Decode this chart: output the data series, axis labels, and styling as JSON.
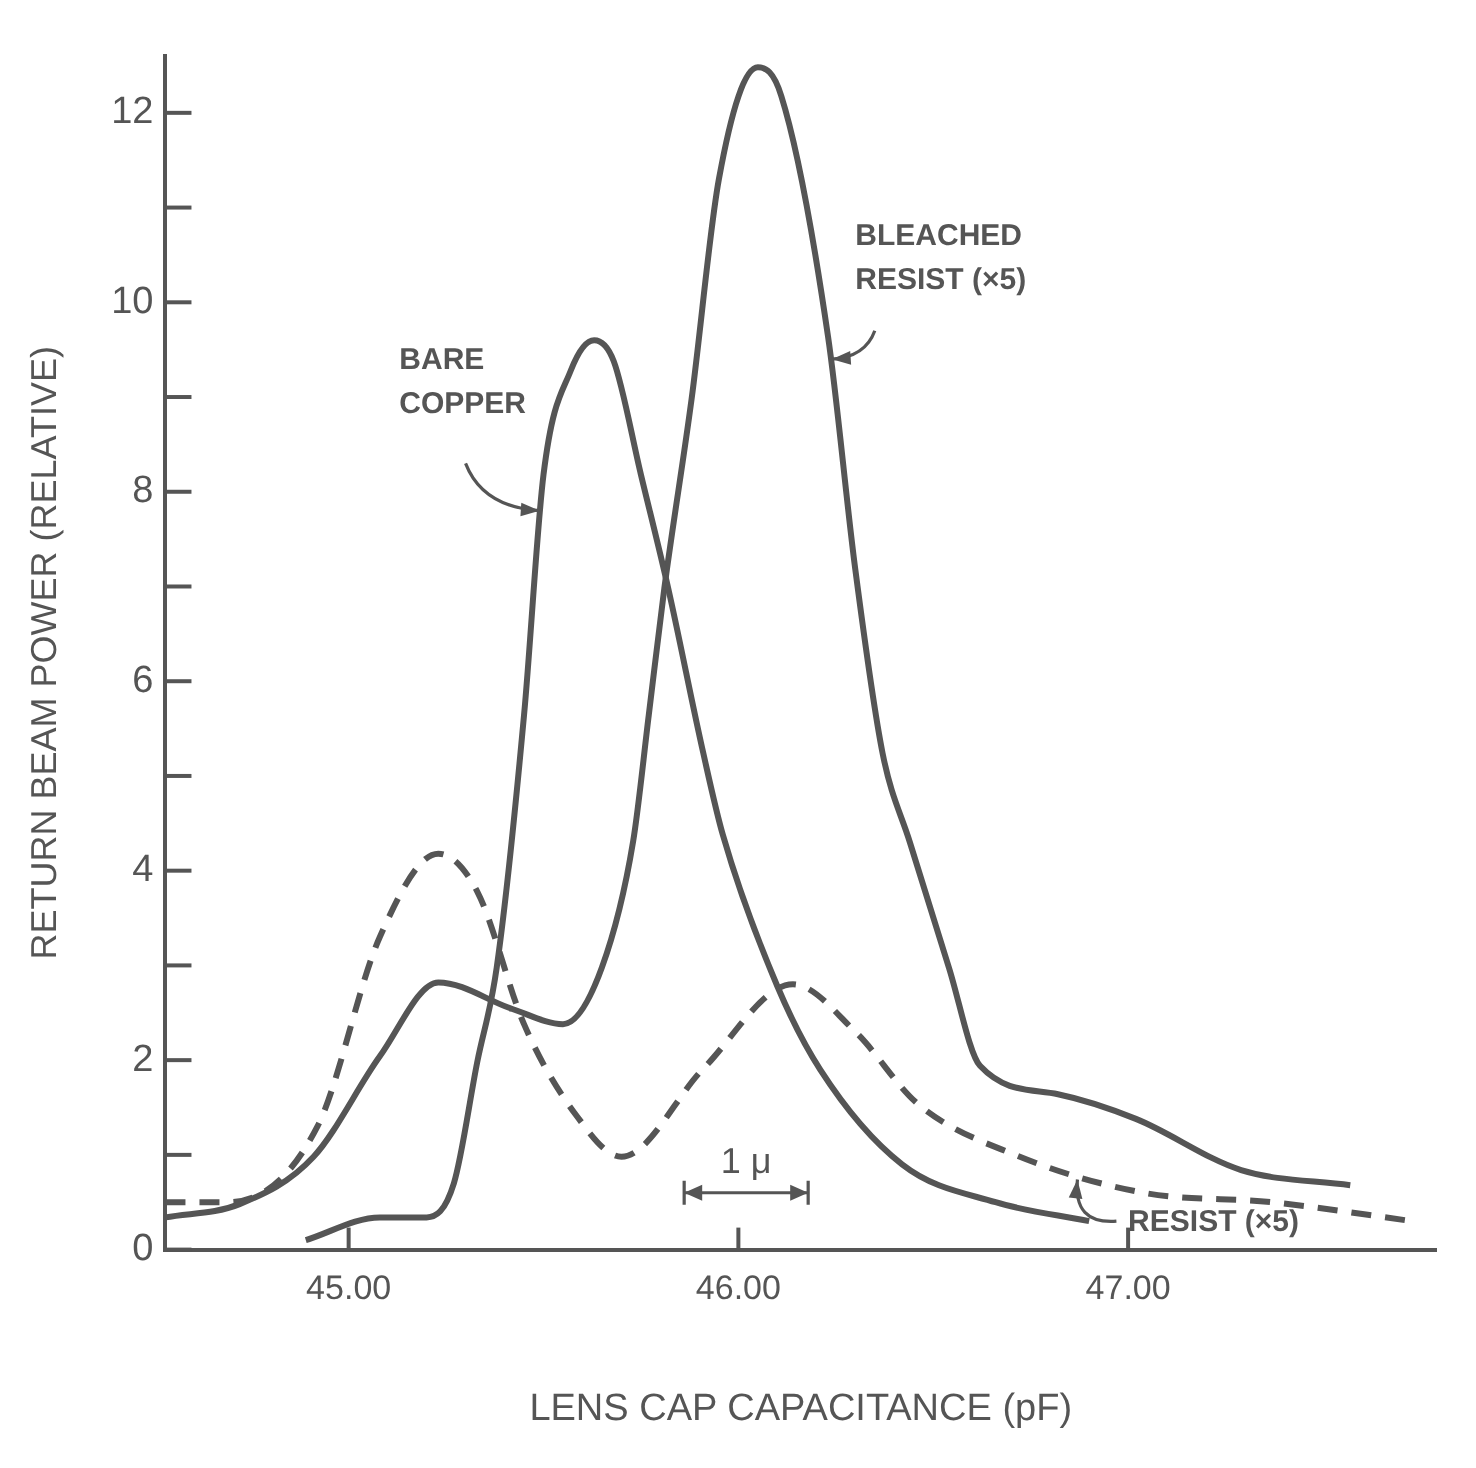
{
  "chart_data": {
    "type": "line",
    "xlabel": "LENS CAP CAPACITANCE (pF)",
    "ylabel": "RETURN BEAM POWER (RELATIVE)",
    "xlim": [
      44.53,
      47.79
    ],
    "ylim": [
      0,
      12.6
    ],
    "xticks": [
      {
        "value": 45,
        "label": "45.00"
      },
      {
        "value": 46,
        "label": "46.00"
      },
      {
        "value": 47,
        "label": "47.00"
      }
    ],
    "yticks": [
      0,
      {
        "value": 1,
        "label": null
      },
      2,
      {
        "value": 3,
        "label": null
      },
      4,
      {
        "value": 5,
        "label": null
      },
      6,
      {
        "value": 7,
        "label": null
      },
      8,
      {
        "value": 9,
        "label": null
      },
      10,
      {
        "value": 11,
        "label": null
      },
      12
    ],
    "grid": false,
    "legend": false,
    "marker": "none",
    "annotations": [
      "1 μ"
    ],
    "series": [
      {
        "name": "BARE COPPER",
        "color": "#555555",
        "line_style": "solid",
        "x": [
          44.89,
          45.08,
          45.2,
          45.27,
          45.33,
          45.38,
          45.45,
          45.5,
          45.57,
          45.63,
          45.68,
          45.75,
          45.82,
          45.91,
          45.96,
          46.1,
          46.21,
          46.42,
          46.66,
          46.9
        ],
        "values": [
          0.1,
          0.34,
          0.34,
          0.7,
          1.98,
          2.98,
          5.64,
          8.18,
          9.28,
          9.6,
          9.38,
          8.18,
          6.98,
          5.24,
          4.38,
          2.78,
          1.9,
          0.9,
          0.5,
          0.3
        ]
      },
      {
        "name": "BLEACHED RESIST (×5)",
        "color": "#555555",
        "line_style": "solid",
        "x": [
          44.53,
          44.72,
          44.91,
          45.08,
          45.23,
          45.42,
          45.55,
          45.65,
          45.73,
          45.77,
          45.81,
          45.88,
          45.95,
          46.05,
          46.11,
          46.23,
          46.3,
          46.37,
          46.44,
          46.54,
          46.62,
          46.82,
          47.02,
          47.29,
          47.57
        ],
        "values": [
          0.34,
          0.48,
          0.98,
          2.04,
          2.82,
          2.54,
          2.38,
          2.98,
          4.31,
          5.64,
          6.98,
          8.98,
          11.3,
          12.48,
          12.18,
          9.64,
          7.18,
          5.24,
          4.3,
          2.98,
          1.94,
          1.64,
          1.38,
          0.84,
          0.68
        ]
      },
      {
        "name": "RESIST (×5)",
        "color": "#555555",
        "line_style": "dashed",
        "x": [
          44.53,
          44.69,
          44.92,
          45.08,
          45.23,
          45.33,
          45.45,
          45.58,
          45.7,
          45.91,
          46.14,
          46.3,
          46.46,
          46.71,
          47.04,
          47.37,
          47.73
        ],
        "values": [
          0.5,
          0.5,
          1.3,
          3.3,
          4.18,
          3.78,
          2.38,
          1.44,
          0.98,
          1.91,
          2.8,
          2.3,
          1.54,
          1.0,
          0.6,
          0.5,
          0.3
        ]
      }
    ]
  }
}
